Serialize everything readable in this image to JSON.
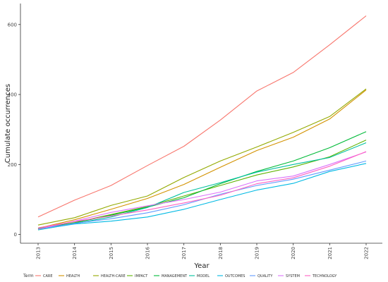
{
  "chart_data": {
    "type": "line",
    "xlabel": "Year",
    "ylabel": "Cumulate occurrences",
    "x": [
      "2013",
      "2014",
      "2015",
      "2016",
      "2017",
      "2018",
      "2019",
      "2020",
      "2021",
      "2022"
    ],
    "ylim": [
      -25,
      660
    ],
    "yticks": [
      0,
      200,
      400,
      600
    ],
    "grid": false,
    "legend": {
      "title": "Term",
      "position": "bottom"
    },
    "series": [
      {
        "name": "CARE",
        "color": "#F8766D",
        "values": [
          50,
          98,
          140,
          197,
          252,
          327,
          410,
          463,
          542,
          625
        ]
      },
      {
        "name": "HEALTH",
        "color": "#D39200",
        "values": [
          18,
          42,
          72,
          103,
          143,
          192,
          240,
          278,
          330,
          413
        ]
      },
      {
        "name": "HEALTH-CARE",
        "color": "#93AA00",
        "values": [
          27,
          48,
          83,
          110,
          163,
          210,
          250,
          292,
          337,
          416
        ]
      },
      {
        "name": "IMPACT",
        "color": "#5EB300",
        "values": [
          17,
          34,
          57,
          80,
          110,
          140,
          170,
          193,
          222,
          270
        ]
      },
      {
        "name": "MANAGEMENT",
        "color": "#00BA38",
        "values": [
          16,
          33,
          55,
          78,
          105,
          145,
          180,
          210,
          248,
          294
        ]
      },
      {
        "name": "MODEL",
        "color": "#00C19F",
        "values": [
          13,
          31,
          50,
          77,
          120,
          148,
          178,
          200,
          220,
          262
        ]
      },
      {
        "name": "OUTCOMES",
        "color": "#00B9E3",
        "values": [
          14,
          30,
          38,
          50,
          72,
          100,
          127,
          146,
          180,
          203
        ]
      },
      {
        "name": "QUALITY",
        "color": "#619CFF",
        "values": [
          15,
          32,
          45,
          62,
          85,
          115,
          140,
          158,
          184,
          210
        ]
      },
      {
        "name": "SYSTEM",
        "color": "#DB72FB",
        "values": [
          15,
          38,
          63,
          82,
          100,
          121,
          153,
          167,
          200,
          236
        ]
      },
      {
        "name": "TECHNOLOGY",
        "color": "#FF61C3",
        "values": [
          19,
          37,
          53,
          70,
          90,
          112,
          145,
          162,
          195,
          237
        ]
      }
    ]
  }
}
